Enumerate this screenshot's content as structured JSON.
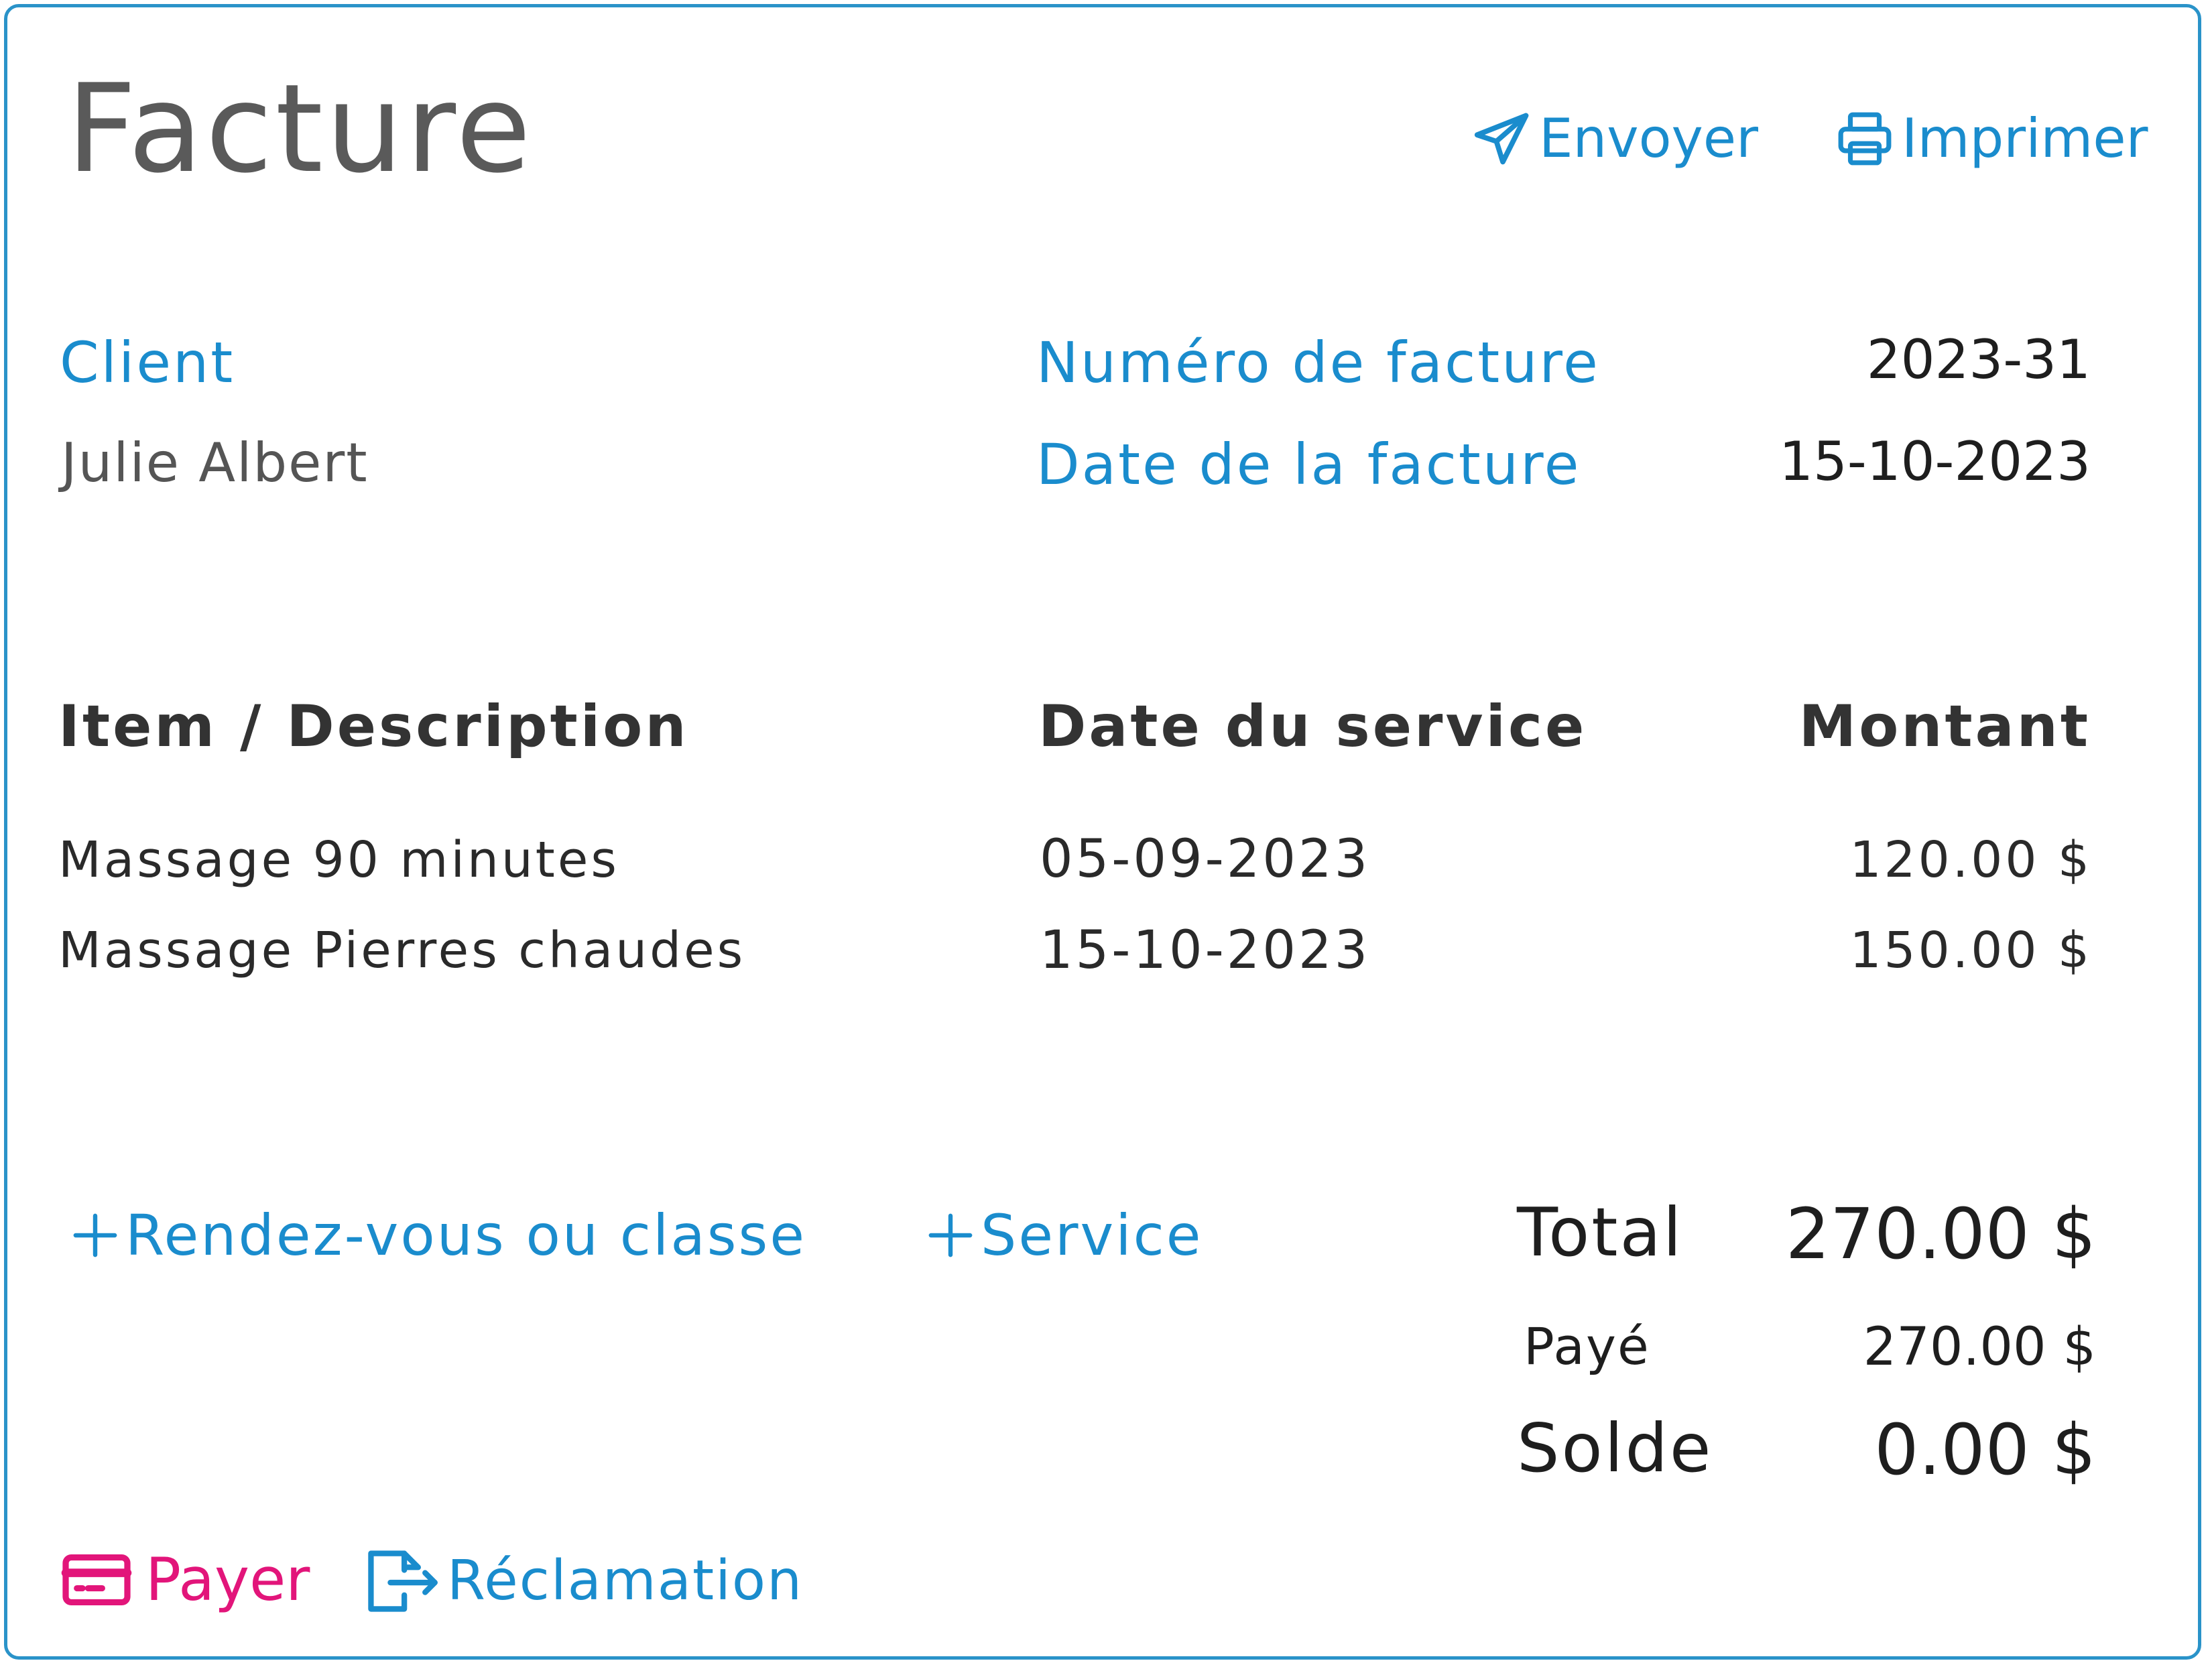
{
  "header": {
    "title": "Facture",
    "send_label": "Envoyer",
    "print_label": "Imprimer"
  },
  "client": {
    "label": "Client",
    "name": "Julie Albert"
  },
  "invoice": {
    "number_label": "Numéro de facture",
    "number": "2023-31",
    "date_label": "Date de la facture",
    "date": "15-10-2023"
  },
  "table": {
    "headers": [
      "Item / Description",
      "Date du service",
      "Montant"
    ],
    "rows": [
      {
        "description": "Massage 90 minutes",
        "date": "05-09-2023",
        "amount": "120.00 $"
      },
      {
        "description": "Massage Pierres chaudes",
        "date": "15-10-2023",
        "amount": "150.00 $"
      }
    ]
  },
  "add_actions": {
    "appointment_label": "Rendez-vous ou classe",
    "service_label": "Service"
  },
  "totals": {
    "total_label": "Total",
    "total": "270.00 $",
    "paid_label": "Payé",
    "paid": "270.00 $",
    "balance_label": "Solde",
    "balance": "0.00 $"
  },
  "footer": {
    "pay_label": "Payer",
    "claim_label": "Réclamation"
  },
  "icons": {
    "send": "paper-plane-icon",
    "print": "printer-icon",
    "add": "plus-icon",
    "pay": "credit-card-icon",
    "claim": "file-export-icon"
  },
  "colors": {
    "accent": "#1a8ccd",
    "pay": "#e2157a",
    "border": "#2a93c9",
    "title": "#5a5a5a"
  }
}
